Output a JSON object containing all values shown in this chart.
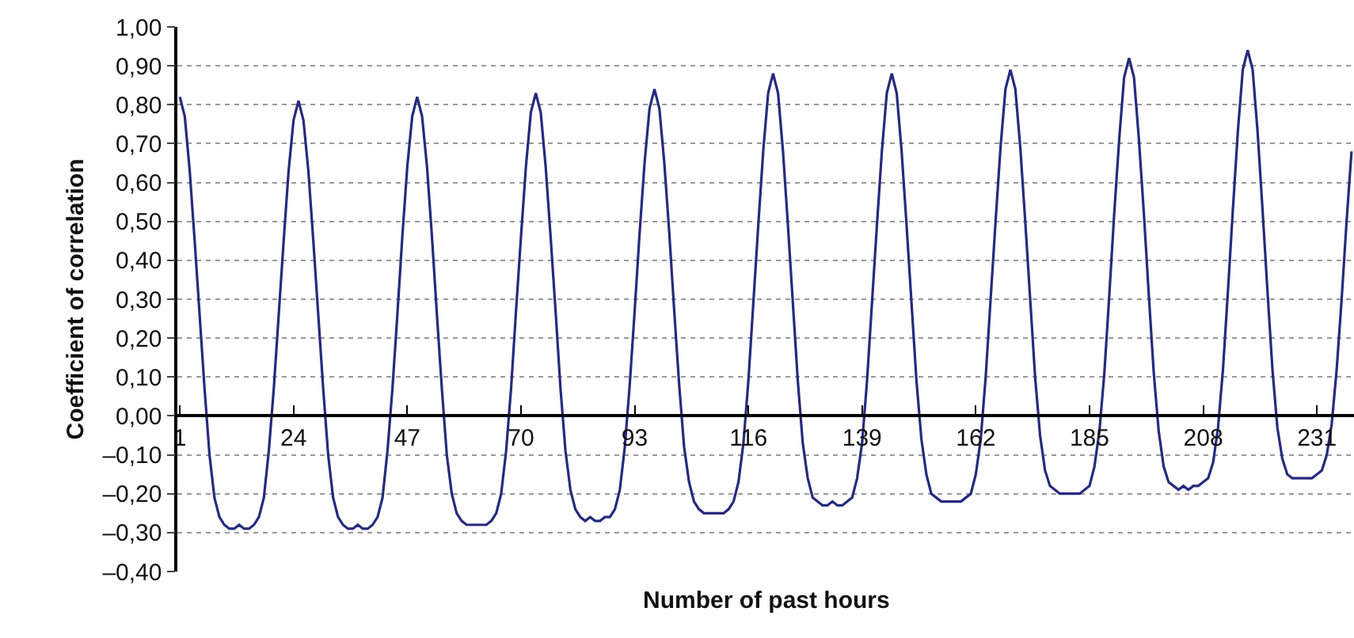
{
  "chart_data": {
    "type": "line",
    "xlabel": "Number of past hours",
    "ylabel": "Coefficient of correlation",
    "x": [
      1,
      2,
      3,
      4,
      5,
      6,
      7,
      8,
      9,
      10,
      11,
      12,
      13,
      14,
      15,
      16,
      17,
      18,
      19,
      20,
      21,
      22,
      23,
      24,
      25,
      26,
      27,
      28,
      29,
      30,
      31,
      32,
      33,
      34,
      35,
      36,
      37,
      38,
      39,
      40,
      41,
      42,
      43,
      44,
      45,
      46,
      47,
      48,
      49,
      50,
      51,
      52,
      53,
      54,
      55,
      56,
      57,
      58,
      59,
      60,
      61,
      62,
      63,
      64,
      65,
      66,
      67,
      68,
      69,
      70,
      71,
      72,
      73,
      74,
      75,
      76,
      77,
      78,
      79,
      80,
      81,
      82,
      83,
      84,
      85,
      86,
      87,
      88,
      89,
      90,
      91,
      92,
      93,
      94,
      95,
      96,
      97,
      98,
      99,
      100,
      101,
      102,
      103,
      104,
      105,
      106,
      107,
      108,
      109,
      110,
      111,
      112,
      113,
      114,
      115,
      116,
      117,
      118,
      119,
      120,
      121,
      122,
      123,
      124,
      125,
      126,
      127,
      128,
      129,
      130,
      131,
      132,
      133,
      134,
      135,
      136,
      137,
      138,
      139,
      140,
      141,
      142,
      143,
      144,
      145,
      146,
      147,
      148,
      149,
      150,
      151,
      152,
      153,
      154,
      155,
      156,
      157,
      158,
      159,
      160,
      161,
      162,
      163,
      164,
      165,
      166,
      167,
      168,
      169,
      170,
      171,
      172,
      173,
      174,
      175,
      176,
      177,
      178,
      179,
      180,
      181,
      182,
      183,
      184,
      185,
      186,
      187,
      188,
      189,
      190,
      191,
      192,
      193,
      194,
      195,
      196,
      197,
      198,
      199,
      200,
      201,
      202,
      203,
      204,
      205,
      206,
      207,
      208,
      209,
      210,
      211,
      212,
      213,
      214,
      215,
      216,
      217,
      218,
      219,
      220,
      221,
      222,
      223,
      224,
      225,
      226,
      227,
      228,
      229,
      230,
      231,
      232,
      233,
      234,
      235,
      236,
      237,
      238
    ],
    "series": [
      {
        "color": "#262a7d",
        "values": [
          0.82,
          0.77,
          0.63,
          0.45,
          0.26,
          0.07,
          -0.1,
          -0.21,
          -0.26,
          -0.28,
          -0.29,
          -0.29,
          -0.28,
          -0.29,
          -0.29,
          -0.28,
          -0.26,
          -0.21,
          -0.09,
          0.07,
          0.26,
          0.45,
          0.63,
          0.76,
          0.81,
          0.76,
          0.63,
          0.45,
          0.26,
          0.07,
          -0.1,
          -0.21,
          -0.26,
          -0.28,
          -0.29,
          -0.29,
          -0.28,
          -0.29,
          -0.29,
          -0.28,
          -0.26,
          -0.21,
          -0.09,
          0.07,
          0.26,
          0.46,
          0.64,
          0.77,
          0.82,
          0.77,
          0.64,
          0.46,
          0.26,
          0.07,
          -0.1,
          -0.2,
          -0.25,
          -0.27,
          -0.28,
          -0.28,
          -0.28,
          -0.28,
          -0.28,
          -0.27,
          -0.25,
          -0.2,
          -0.09,
          0.07,
          0.27,
          0.46,
          0.64,
          0.78,
          0.83,
          0.78,
          0.64,
          0.46,
          0.27,
          0.07,
          -0.09,
          -0.19,
          -0.24,
          -0.26,
          -0.27,
          -0.26,
          -0.27,
          -0.27,
          -0.26,
          -0.26,
          -0.24,
          -0.19,
          -0.08,
          0.08,
          0.27,
          0.47,
          0.65,
          0.79,
          0.84,
          0.79,
          0.65,
          0.47,
          0.27,
          0.08,
          -0.08,
          -0.17,
          -0.22,
          -0.24,
          -0.25,
          -0.25,
          -0.25,
          -0.25,
          -0.25,
          -0.24,
          -0.22,
          -0.17,
          -0.07,
          0.09,
          0.29,
          0.49,
          0.68,
          0.83,
          0.88,
          0.83,
          0.68,
          0.49,
          0.29,
          0.09,
          -0.07,
          -0.16,
          -0.21,
          -0.22,
          -0.23,
          -0.23,
          -0.22,
          -0.23,
          -0.23,
          -0.22,
          -0.21,
          -0.16,
          -0.07,
          0.09,
          0.29,
          0.49,
          0.68,
          0.83,
          0.88,
          0.83,
          0.68,
          0.49,
          0.29,
          0.09,
          -0.06,
          -0.15,
          -0.2,
          -0.21,
          -0.22,
          -0.22,
          -0.22,
          -0.22,
          -0.22,
          -0.21,
          -0.2,
          -0.15,
          -0.06,
          0.1,
          0.3,
          0.5,
          0.69,
          0.84,
          0.89,
          0.84,
          0.69,
          0.5,
          0.3,
          0.1,
          -0.05,
          -0.14,
          -0.18,
          -0.19,
          -0.2,
          -0.2,
          -0.2,
          -0.2,
          -0.2,
          -0.19,
          -0.18,
          -0.13,
          -0.04,
          0.11,
          0.31,
          0.52,
          0.71,
          0.87,
          0.92,
          0.87,
          0.71,
          0.52,
          0.31,
          0.11,
          -0.04,
          -0.13,
          -0.17,
          -0.18,
          -0.19,
          -0.18,
          -0.19,
          -0.18,
          -0.18,
          -0.17,
          -0.16,
          -0.12,
          -0.03,
          0.12,
          0.32,
          0.53,
          0.73,
          0.89,
          0.94,
          0.89,
          0.73,
          0.53,
          0.32,
          0.12,
          -0.03,
          -0.11,
          -0.15,
          -0.16,
          -0.16,
          -0.16,
          -0.16,
          -0.16,
          -0.15,
          -0.14,
          -0.1,
          -0.02,
          0.12,
          0.3,
          0.5,
          0.68
        ]
      }
    ],
    "xlim": [
      0.5,
      238.5
    ],
    "xticks": [
      1,
      24,
      47,
      70,
      93,
      116,
      139,
      162,
      185,
      208,
      231
    ],
    "ylim": [
      -0.4,
      1.0
    ],
    "yticks": [
      {
        "value": -0.4,
        "label": "–0,40"
      },
      {
        "value": -0.3,
        "label": "–0,30"
      },
      {
        "value": -0.2,
        "label": "–0,20"
      },
      {
        "value": -0.1,
        "label": "–0,10"
      },
      {
        "value": 0,
        "label": "0,00"
      },
      {
        "value": 0.1,
        "label": "0,10"
      },
      {
        "value": 0.2,
        "label": "0,20"
      },
      {
        "value": 0.3,
        "label": "0,30"
      },
      {
        "value": 0.4,
        "label": "0,40"
      },
      {
        "value": 0.5,
        "label": "0,50"
      },
      {
        "value": 0.6,
        "label": "0,60"
      },
      {
        "value": 0.7,
        "label": "0,70"
      },
      {
        "value": 0.8,
        "label": "0,80"
      },
      {
        "value": 0.9,
        "label": "0,90"
      },
      {
        "value": 1.0,
        "label": "1,00"
      }
    ],
    "grid": "y",
    "marker": "none",
    "line_style": "solid"
  }
}
